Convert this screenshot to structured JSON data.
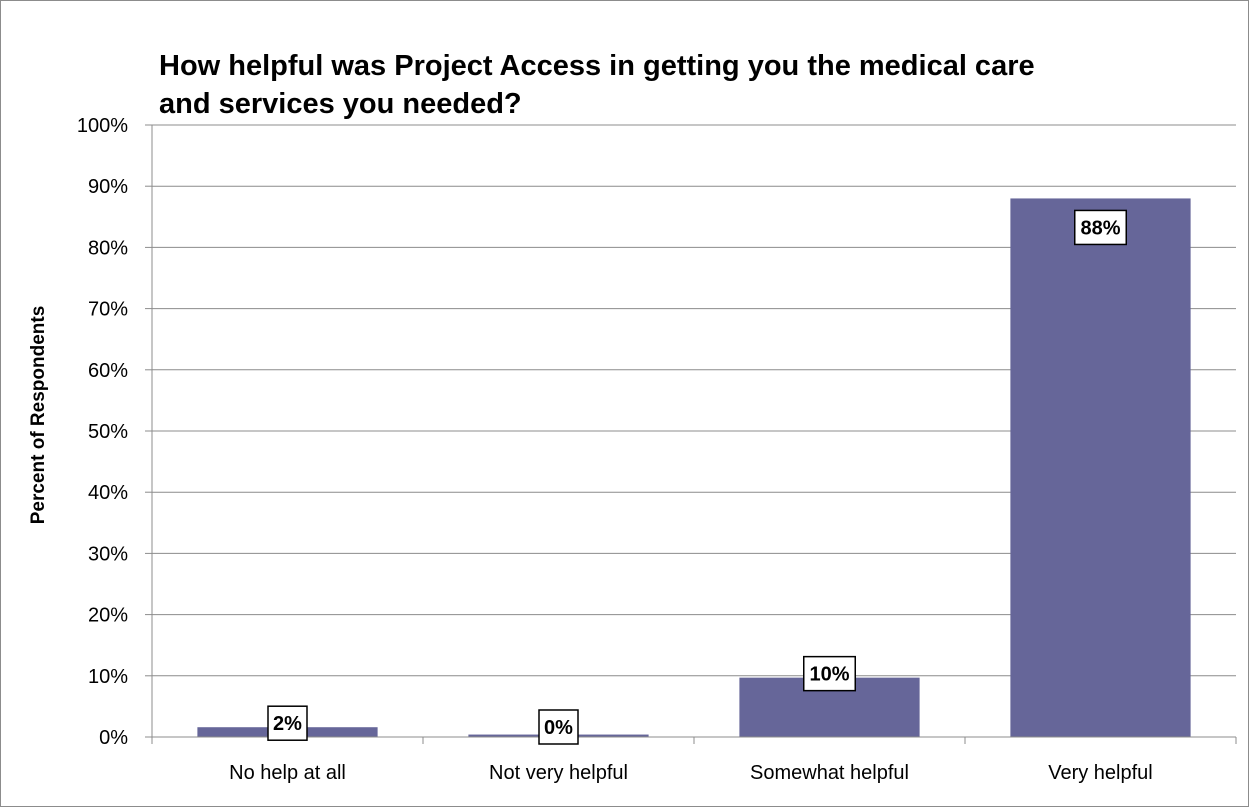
{
  "chart_data": {
    "type": "bar",
    "title": "How helpful was Project Access in getting you the medical care\nand services you needed?",
    "xlabel": "",
    "ylabel": "Percent of Respondents",
    "categories": [
      "No help at all",
      "Not very helpful",
      "Somewhat helpful",
      "Very helpful"
    ],
    "values": [
      2,
      0,
      10,
      88
    ],
    "actual_values": [
      1.6,
      0.4,
      9.7,
      88
    ],
    "data_labels": [
      "2%",
      "0%",
      "10%",
      "88%"
    ],
    "ylim": [
      0,
      100
    ],
    "yticks": [
      "0%",
      "10%",
      "20%",
      "30%",
      "40%",
      "50%",
      "60%",
      "70%",
      "80%",
      "90%",
      "100%"
    ],
    "grid": true,
    "legend": "none",
    "bar_color": "#666699",
    "grid_color": "#8c8c8c"
  }
}
